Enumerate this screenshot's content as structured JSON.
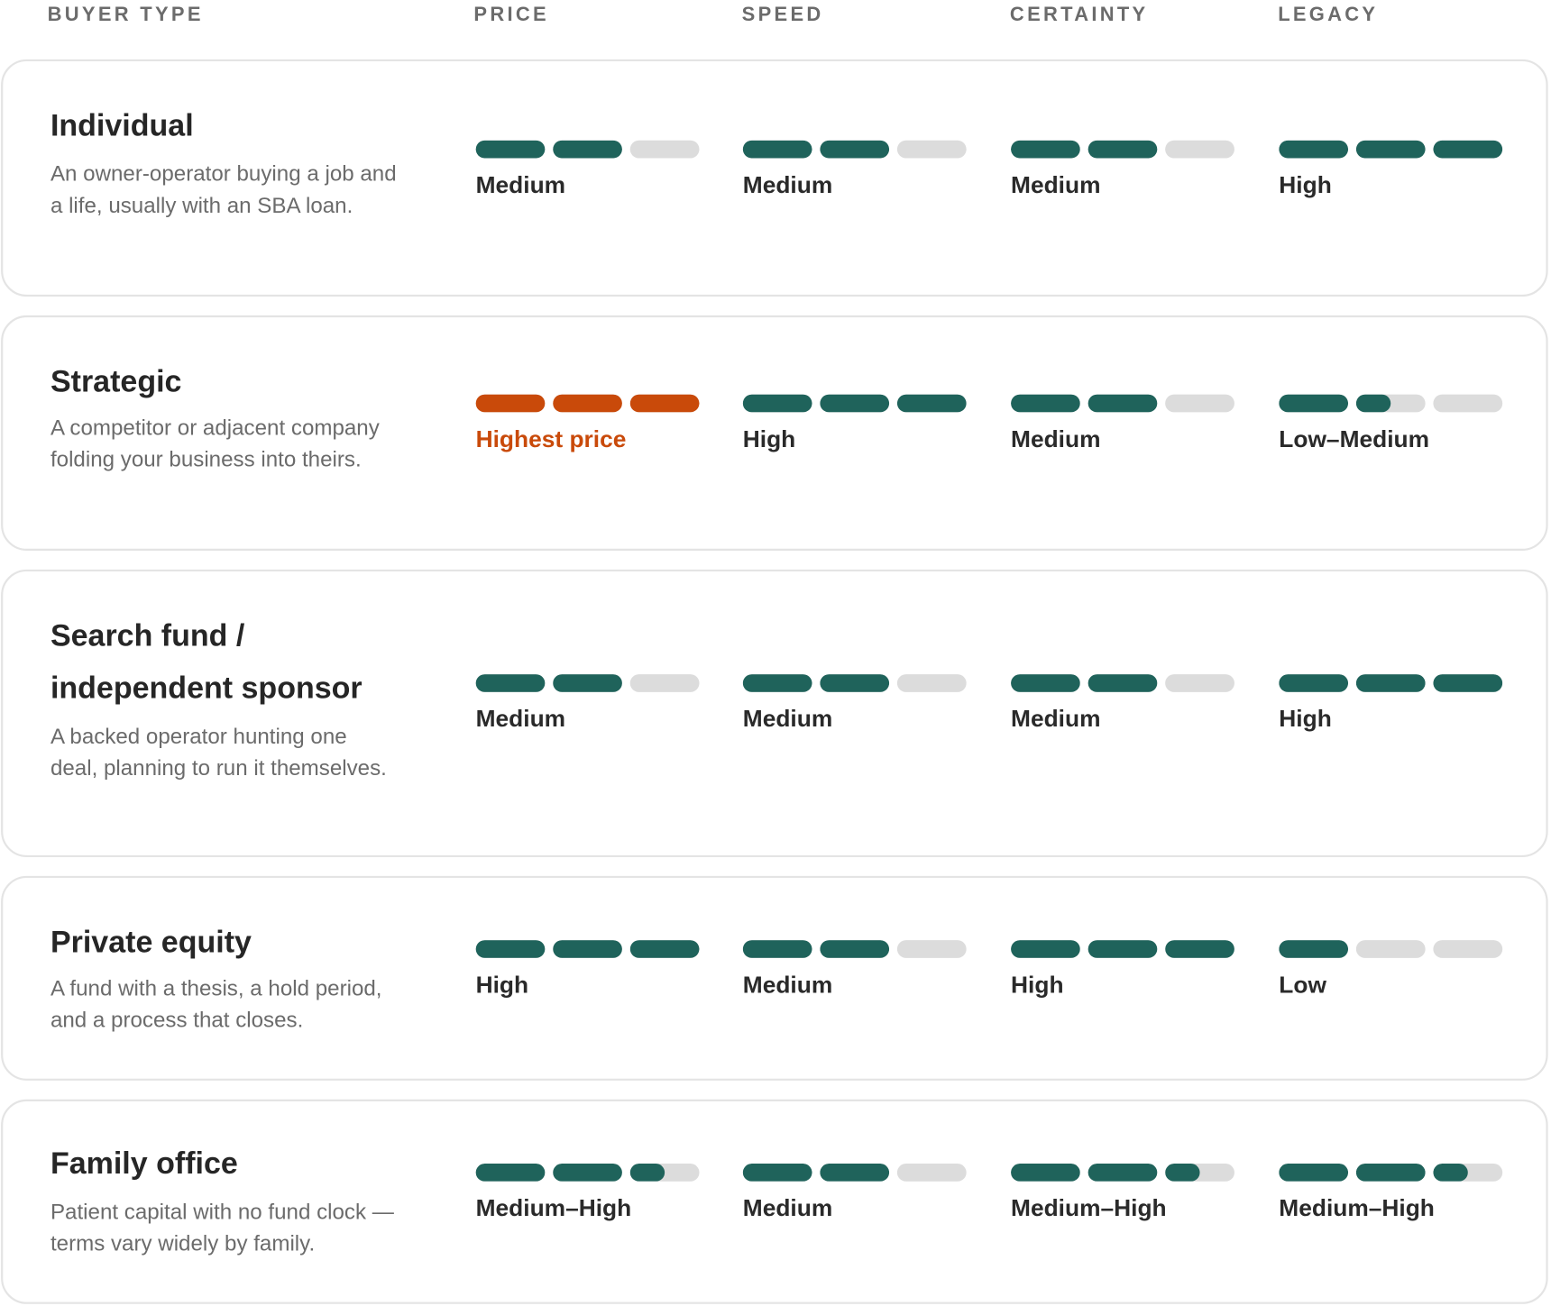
{
  "colors": {
    "accent": "#1f635b",
    "highlight": "#c94a0a",
    "empty": "#dcdcdc",
    "border": "#e4e4e4"
  },
  "columns": [
    "BUYER TYPE",
    "PRICE",
    "SPEED",
    "CERTAINTY",
    "LEGACY"
  ],
  "rows": [
    {
      "title": "Individual",
      "description": "An owner-operator buying a job and a life, usually with an SBA loan.",
      "metrics": [
        {
          "label": "Medium",
          "level": 2,
          "highlight": false
        },
        {
          "label": "Medium",
          "level": 2,
          "highlight": false
        },
        {
          "label": "Medium",
          "level": 2,
          "highlight": false
        },
        {
          "label": "High",
          "level": 3,
          "highlight": false
        }
      ]
    },
    {
      "title": "Strategic",
      "description": "A competitor or adjacent company folding your business into theirs.",
      "metrics": [
        {
          "label": "Highest price",
          "level": 3,
          "highlight": true
        },
        {
          "label": "High",
          "level": 3,
          "highlight": false
        },
        {
          "label": "Medium",
          "level": 2,
          "highlight": false
        },
        {
          "label": "Low–Medium",
          "level": 1.5,
          "highlight": false
        }
      ]
    },
    {
      "title": "Search fund / independent sponsor",
      "description": "A backed operator hunting one deal, planning to run it themselves.",
      "metrics": [
        {
          "label": "Medium",
          "level": 2,
          "highlight": false
        },
        {
          "label": "Medium",
          "level": 2,
          "highlight": false
        },
        {
          "label": "Medium",
          "level": 2,
          "highlight": false
        },
        {
          "label": "High",
          "level": 3,
          "highlight": false
        }
      ]
    },
    {
      "title": "Private equity",
      "description": "A fund with a thesis, a hold period, and a process that closes.",
      "metrics": [
        {
          "label": "High",
          "level": 3,
          "highlight": false
        },
        {
          "label": "Medium",
          "level": 2,
          "highlight": false
        },
        {
          "label": "High",
          "level": 3,
          "highlight": false
        },
        {
          "label": "Low",
          "level": 1,
          "highlight": false
        }
      ]
    },
    {
      "title": "Family office",
      "description": "Patient capital with no fund clock — terms vary widely by family.",
      "metrics": [
        {
          "label": "Medium–High",
          "level": 2.5,
          "highlight": false
        },
        {
          "label": "Medium",
          "level": 2,
          "highlight": false
        },
        {
          "label": "Medium–High",
          "level": 2.5,
          "highlight": false
        },
        {
          "label": "Medium–High",
          "level": 2.5,
          "highlight": false
        }
      ]
    }
  ]
}
